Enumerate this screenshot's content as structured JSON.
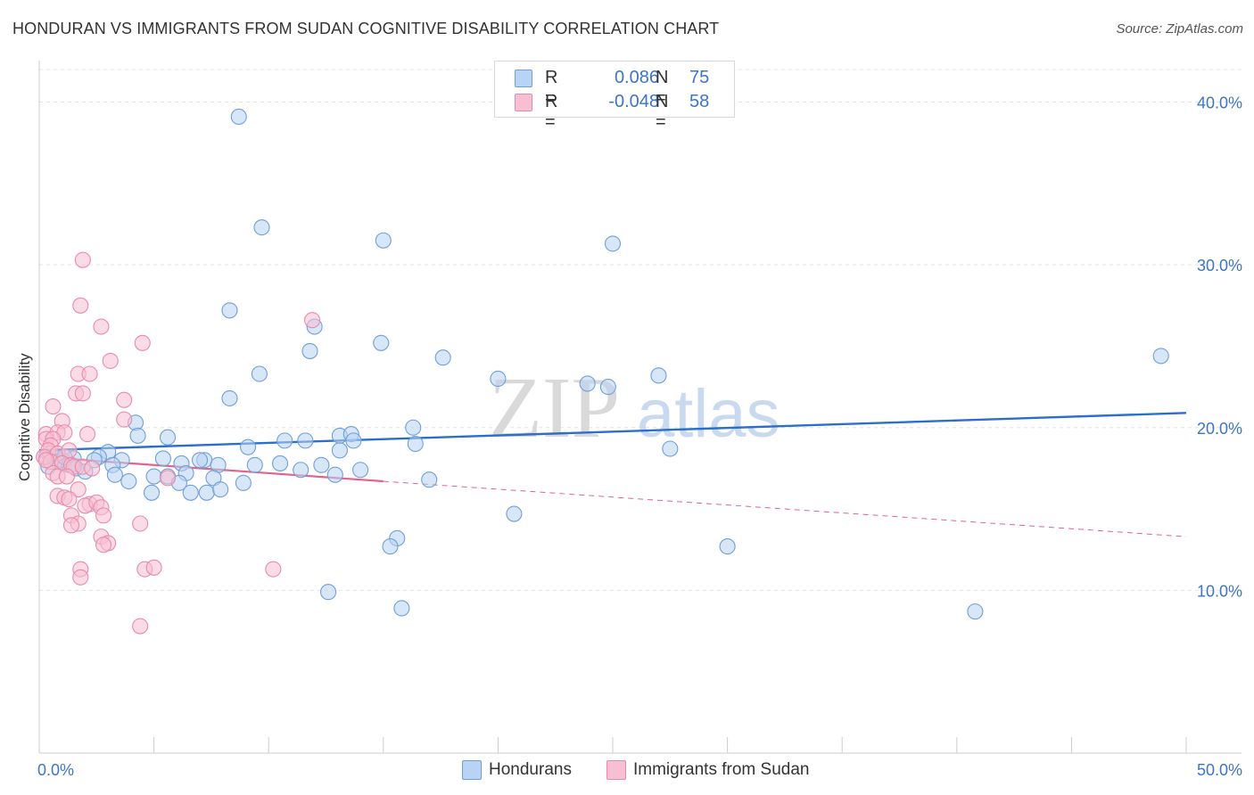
{
  "title": "HONDURAN VS IMMIGRANTS FROM SUDAN COGNITIVE DISABILITY CORRELATION CHART",
  "source": "Source: ZipAtlas.com",
  "watermark": {
    "zip": "ZIP",
    "atlas": "atlas"
  },
  "legend": {
    "r_label": "R =",
    "n_label": "N =",
    "series": [
      {
        "r": "0.086",
        "n": "75"
      },
      {
        "r": "-0.048",
        "n": "58"
      }
    ]
  },
  "colors": {
    "blue_fill": "#b8d3f3",
    "blue_stroke": "#6f9fd8",
    "blue_line": "#2b6fcb",
    "pink_fill": "#f7bfd1",
    "pink_stroke": "#e98aaa",
    "pink_line": "#e0648e",
    "tick_text": "#3c75c8",
    "grid": "#e4e4e4"
  },
  "chart_data": {
    "type": "scatter",
    "title": "HONDURAN VS IMMIGRANTS FROM SUDAN COGNITIVE DISABILITY CORRELATION CHART",
    "xlabel": "",
    "ylabel": "Cognitive Disability",
    "xlim": [
      0,
      50
    ],
    "ylim": [
      0,
      42
    ],
    "x_tick_labels": [
      {
        "value": 0,
        "label": "0.0%"
      },
      {
        "value": 50,
        "label": "50.0%"
      }
    ],
    "y_ticks": [
      {
        "value": 10,
        "label": "10.0%"
      },
      {
        "value": 20,
        "label": "20.0%"
      },
      {
        "value": 30,
        "label": "30.0%"
      },
      {
        "value": 40,
        "label": "40.0%"
      }
    ],
    "x_minor_ticks": [
      5,
      10,
      15,
      20,
      25,
      30,
      35,
      40,
      45,
      50
    ],
    "grid": true,
    "legend_position": "top-center",
    "series": [
      {
        "name": "Hondurans",
        "color": "#6f9fd8",
        "trend": {
          "x": [
            0,
            50
          ],
          "y": [
            18.6,
            20.9
          ]
        },
        "points": [
          [
            8.7,
            39.1
          ],
          [
            9.7,
            32.3
          ],
          [
            15.0,
            31.5
          ],
          [
            25.0,
            31.3
          ],
          [
            8.3,
            27.2
          ],
          [
            12.0,
            26.2
          ],
          [
            11.8,
            24.7
          ],
          [
            14.9,
            25.2
          ],
          [
            17.6,
            24.3
          ],
          [
            9.6,
            23.3
          ],
          [
            20.0,
            23.0
          ],
          [
            23.9,
            22.7
          ],
          [
            24.8,
            22.5
          ],
          [
            27.0,
            23.2
          ],
          [
            8.3,
            21.8
          ],
          [
            48.9,
            24.4
          ],
          [
            4.2,
            20.3
          ],
          [
            4.3,
            19.5
          ],
          [
            5.6,
            19.4
          ],
          [
            10.7,
            19.2
          ],
          [
            11.6,
            19.2
          ],
          [
            13.1,
            19.5
          ],
          [
            13.6,
            19.6
          ],
          [
            16.3,
            20.0
          ],
          [
            13.7,
            19.2
          ],
          [
            16.4,
            19.0
          ],
          [
            9.1,
            18.8
          ],
          [
            3.0,
            18.5
          ],
          [
            13.1,
            18.6
          ],
          [
            27.5,
            18.7
          ],
          [
            5.4,
            18.1
          ],
          [
            7.2,
            18.0
          ],
          [
            2.6,
            18.2
          ],
          [
            1.5,
            18.1
          ],
          [
            1.0,
            18.0
          ],
          [
            0.5,
            18.4
          ],
          [
            0.8,
            17.9
          ],
          [
            1.3,
            17.7
          ],
          [
            1.6,
            17.5
          ],
          [
            2.0,
            17.3
          ],
          [
            2.4,
            18.0
          ],
          [
            3.6,
            18.0
          ],
          [
            3.2,
            17.7
          ],
          [
            6.2,
            17.8
          ],
          [
            7.0,
            18.0
          ],
          [
            7.8,
            17.7
          ],
          [
            9.4,
            17.7
          ],
          [
            10.5,
            17.8
          ],
          [
            11.4,
            17.4
          ],
          [
            12.3,
            17.7
          ],
          [
            14.0,
            17.4
          ],
          [
            0.4,
            17.6
          ],
          [
            3.3,
            17.1
          ],
          [
            3.9,
            16.7
          ],
          [
            5.0,
            17.0
          ],
          [
            5.6,
            17.0
          ],
          [
            6.4,
            17.2
          ],
          [
            6.1,
            16.6
          ],
          [
            7.6,
            16.9
          ],
          [
            8.9,
            16.6
          ],
          [
            12.9,
            17.1
          ],
          [
            17.0,
            16.8
          ],
          [
            4.9,
            16.0
          ],
          [
            6.6,
            16.0
          ],
          [
            7.3,
            16.0
          ],
          [
            7.9,
            16.2
          ],
          [
            20.7,
            14.7
          ],
          [
            15.6,
            13.2
          ],
          [
            15.3,
            12.7
          ],
          [
            30.0,
            12.7
          ],
          [
            12.6,
            9.9
          ],
          [
            15.8,
            8.9
          ],
          [
            40.8,
            8.7
          ],
          [
            0.3,
            18.2
          ],
          [
            1.1,
            18.2
          ]
        ]
      },
      {
        "name": "Immigrants from Sudan",
        "color": "#e98aaa",
        "trend": {
          "x": [
            0,
            15
          ],
          "y": [
            18.2,
            16.7
          ]
        },
        "trend_extension": {
          "x": [
            15,
            50
          ],
          "y": [
            16.7,
            13.3
          ]
        },
        "points": [
          [
            1.9,
            30.3
          ],
          [
            1.8,
            27.5
          ],
          [
            2.7,
            26.2
          ],
          [
            4.5,
            25.2
          ],
          [
            11.9,
            26.6
          ],
          [
            3.1,
            24.1
          ],
          [
            1.7,
            23.3
          ],
          [
            2.2,
            23.3
          ],
          [
            1.6,
            22.1
          ],
          [
            1.9,
            22.1
          ],
          [
            3.7,
            21.7
          ],
          [
            0.6,
            21.3
          ],
          [
            3.7,
            20.5
          ],
          [
            1.0,
            20.4
          ],
          [
            0.3,
            19.6
          ],
          [
            0.8,
            19.7
          ],
          [
            2.1,
            19.6
          ],
          [
            1.1,
            19.7
          ],
          [
            0.3,
            19.3
          ],
          [
            0.6,
            19.3
          ],
          [
            0.5,
            18.9
          ],
          [
            0.4,
            18.6
          ],
          [
            0.8,
            18.4
          ],
          [
            1.3,
            18.6
          ],
          [
            0.2,
            18.2
          ],
          [
            0.5,
            17.9
          ],
          [
            1.0,
            17.8
          ],
          [
            1.4,
            17.7
          ],
          [
            1.5,
            17.6
          ],
          [
            1.9,
            17.6
          ],
          [
            2.3,
            17.5
          ],
          [
            0.6,
            17.2
          ],
          [
            0.8,
            17.0
          ],
          [
            1.2,
            17.0
          ],
          [
            5.6,
            16.9
          ],
          [
            1.7,
            16.2
          ],
          [
            0.8,
            15.8
          ],
          [
            1.1,
            15.7
          ],
          [
            1.3,
            15.6
          ],
          [
            2.2,
            15.3
          ],
          [
            2.0,
            15.2
          ],
          [
            2.5,
            15.4
          ],
          [
            2.7,
            15.1
          ],
          [
            1.4,
            14.6
          ],
          [
            2.8,
            14.6
          ],
          [
            1.7,
            14.1
          ],
          [
            1.4,
            14.0
          ],
          [
            4.4,
            14.1
          ],
          [
            2.7,
            13.3
          ],
          [
            3.0,
            12.9
          ],
          [
            2.8,
            12.8
          ],
          [
            4.6,
            11.3
          ],
          [
            5.0,
            11.4
          ],
          [
            10.2,
            11.3
          ],
          [
            1.8,
            11.3
          ],
          [
            1.8,
            10.8
          ],
          [
            4.4,
            7.8
          ],
          [
            0.3,
            18.0
          ]
        ]
      }
    ]
  }
}
